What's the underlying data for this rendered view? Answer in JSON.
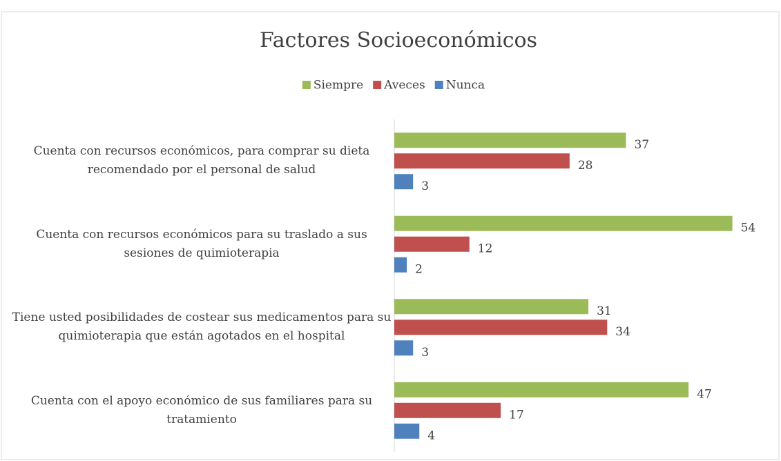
{
  "chart_data": {
    "type": "bar",
    "orientation": "horizontal",
    "title": "Factores Socioeconómicos",
    "categories": [
      "Cuenta con recursos económicos, para comprar su dieta recomendado por el personal de salud",
      "Cuenta con recursos económicos para su traslado a sus sesiones de quimioterapia",
      "Tiene usted posibilidades de costear sus medicamentos para su quimioterapia que están agotados en el hospital",
      "Cuenta con el apoyo económico de sus familiares para su tratamiento"
    ],
    "series": [
      {
        "name": "Siempre",
        "color": "#9bbb59",
        "values": [
          37,
          54,
          31,
          47
        ]
      },
      {
        "name": "Aveces",
        "color": "#c0504d",
        "values": [
          28,
          12,
          34,
          17
        ]
      },
      {
        "name": "Nunca",
        "color": "#4f81bd",
        "values": [
          3,
          2,
          3,
          4
        ]
      }
    ],
    "xlim": [
      0,
      60
    ],
    "legend": "top"
  }
}
